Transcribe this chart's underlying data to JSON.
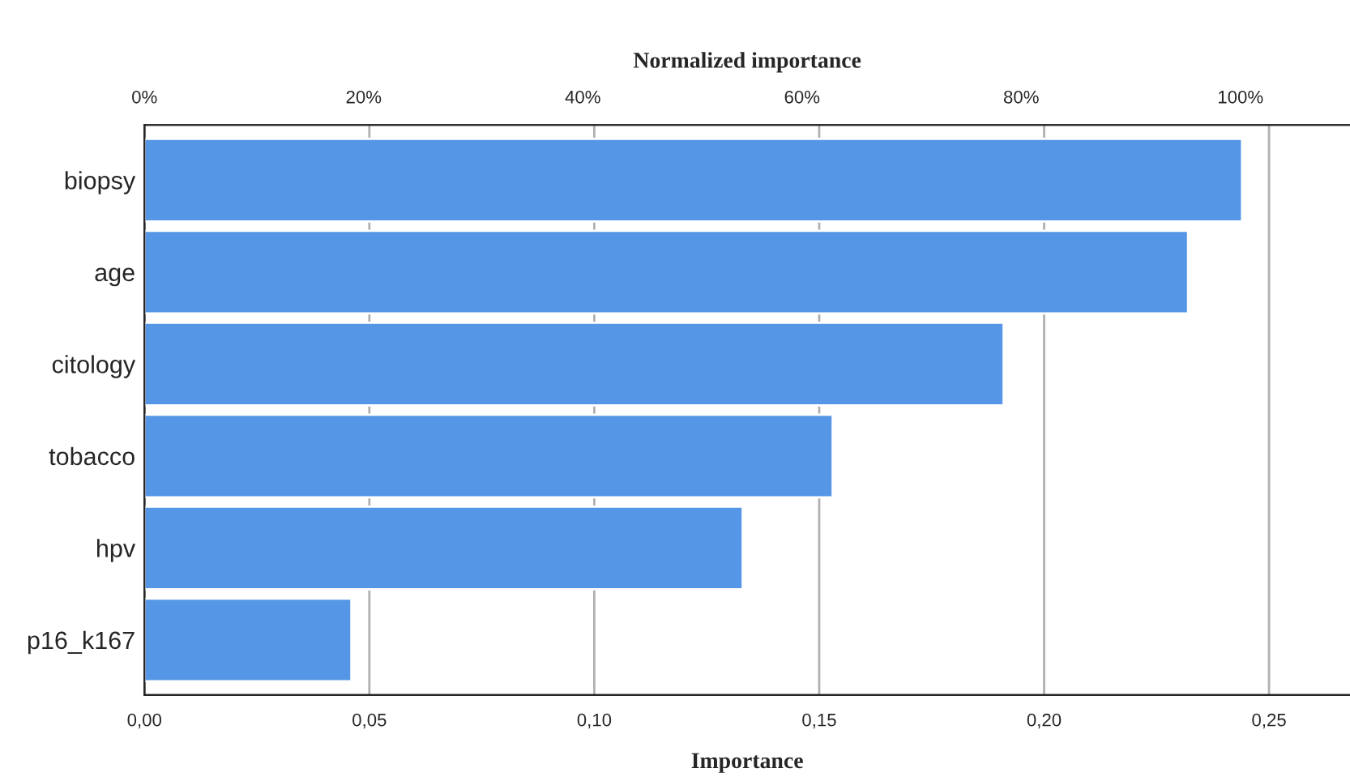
{
  "chart_data": {
    "type": "bar",
    "orientation": "horizontal",
    "categories": [
      "biopsy",
      "age",
      "citology",
      "tobacco",
      "hpv",
      "p16_k167"
    ],
    "values": [
      0.244,
      0.232,
      0.191,
      0.153,
      0.133,
      0.046
    ],
    "color": "#5596e6",
    "xlabel": "Importance",
    "x2label": "Normalized importance",
    "xlim": [
      0,
      0.268
    ],
    "xticks": [
      {
        "value": 0,
        "label": "0,00"
      },
      {
        "value": 0.05,
        "label": "0,05"
      },
      {
        "value": 0.1,
        "label": "0,10"
      },
      {
        "value": 0.15,
        "label": "0,15"
      },
      {
        "value": 0.2,
        "label": "0,20"
      },
      {
        "value": 0.25,
        "label": "0,25"
      }
    ],
    "x2lim": [
      0,
      110
    ],
    "x2ticks": [
      {
        "value": 0,
        "label": "0%"
      },
      {
        "value": 20,
        "label": "20%"
      },
      {
        "value": 40,
        "label": "40%"
      },
      {
        "value": 60,
        "label": "60%"
      },
      {
        "value": 80,
        "label": "80%"
      },
      {
        "value": 100,
        "label": "100%"
      }
    ],
    "grid": "x"
  }
}
